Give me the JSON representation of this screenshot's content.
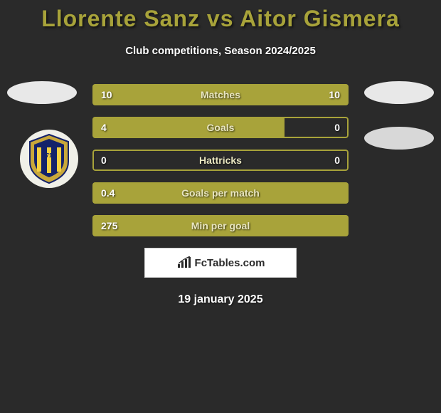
{
  "header": {
    "title": "Llorente Sanz vs Aitor Gismera",
    "subtitle": "Club competitions, Season 2024/2025"
  },
  "colors": {
    "accent": "#a8a33a",
    "accent_light": "#b8b050",
    "text_light": "#ffffff",
    "background": "#2a2a2a",
    "avatar_placeholder": "#e8e8e8",
    "team_right_placeholder": "#d8d8d8",
    "bar_label_color": "#e8e5c0",
    "bar_value_color": "#ffffff"
  },
  "players": {
    "left": {
      "avatar_color": "#e8e8e8"
    },
    "right": {
      "avatar_color": "#e8e8e8"
    }
  },
  "team_badge": {
    "outer": "#c9a83a",
    "inner": "#14226a",
    "stripes": "#f5d040",
    "text": "A D",
    "subtext": "71"
  },
  "stats": [
    {
      "label": "Matches",
      "left_val": "10",
      "right_val": "10",
      "left_pct": 50,
      "right_pct": 50,
      "fill_color": "#a8a33a"
    },
    {
      "label": "Goals",
      "left_val": "4",
      "right_val": "0",
      "left_pct": 75,
      "right_pct": 0,
      "fill_color": "#a8a33a"
    },
    {
      "label": "Hattricks",
      "left_val": "0",
      "right_val": "0",
      "left_pct": 0,
      "right_pct": 0,
      "fill_color": "#a8a33a"
    },
    {
      "label": "Goals per match",
      "left_val": "0.4",
      "right_val": "",
      "left_pct": 100,
      "right_pct": 0,
      "fill_color": "#a8a33a"
    },
    {
      "label": "Min per goal",
      "left_val": "275",
      "right_val": "",
      "left_pct": 100,
      "right_pct": 0,
      "fill_color": "#a8a33a"
    }
  ],
  "branding": {
    "text": "FcTables.com"
  },
  "date": "19 january 2025"
}
